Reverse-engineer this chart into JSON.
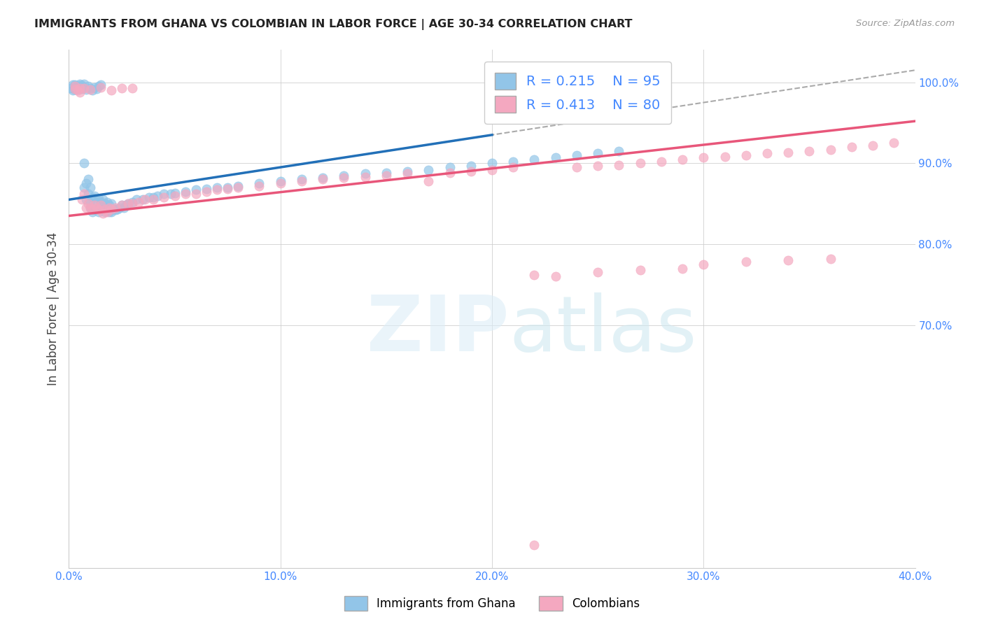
{
  "title": "IMMIGRANTS FROM GHANA VS COLOMBIAN IN LABOR FORCE | AGE 30-34 CORRELATION CHART",
  "source": "Source: ZipAtlas.com",
  "ylabel": "In Labor Force | Age 30-34",
  "xlim": [
    0.0,
    0.4
  ],
  "ylim": [
    0.4,
    1.04
  ],
  "xticks": [
    0.0,
    0.1,
    0.2,
    0.3,
    0.4
  ],
  "ytick_vals": [
    0.7,
    0.8,
    0.9,
    1.0
  ],
  "ytick_labels": [
    "70.0%",
    "80.0%",
    "90.0%",
    "100.0%"
  ],
  "ghana_R": 0.215,
  "ghana_N": 95,
  "colombian_R": 0.413,
  "colombian_N": 80,
  "ghana_color": "#92c5e8",
  "colombian_color": "#f4a8c0",
  "ghana_line_color": "#2270b8",
  "colombian_line_color": "#e8567a",
  "dashed_line_color": "#aaaaaa",
  "tick_color": "#4488ff",
  "ghana_x": [
    0.002,
    0.003,
    0.003,
    0.004,
    0.004,
    0.005,
    0.005,
    0.005,
    0.006,
    0.006,
    0.007,
    0.007,
    0.008,
    0.008,
    0.009,
    0.009,
    0.01,
    0.01,
    0.01,
    0.011,
    0.011,
    0.012,
    0.012,
    0.013,
    0.013,
    0.014,
    0.014,
    0.015,
    0.015,
    0.016,
    0.016,
    0.017,
    0.017,
    0.018,
    0.018,
    0.019,
    0.019,
    0.02,
    0.02,
    0.021,
    0.022,
    0.023,
    0.024,
    0.025,
    0.026,
    0.027,
    0.028,
    0.03,
    0.032,
    0.035,
    0.038,
    0.04,
    0.042,
    0.045,
    0.048,
    0.05,
    0.055,
    0.06,
    0.065,
    0.07,
    0.075,
    0.08,
    0.09,
    0.1,
    0.11,
    0.12,
    0.13,
    0.14,
    0.15,
    0.16,
    0.17,
    0.18,
    0.19,
    0.2,
    0.21,
    0.22,
    0.23,
    0.24,
    0.25,
    0.26,
    0.001,
    0.002,
    0.003,
    0.004,
    0.005,
    0.006,
    0.007,
    0.008,
    0.009,
    0.01,
    0.011,
    0.012,
    0.013,
    0.014,
    0.015
  ],
  "ghana_y": [
    0.99,
    0.993,
    0.997,
    0.992,
    0.995,
    0.993,
    0.996,
    0.998,
    0.992,
    0.995,
    0.87,
    0.9,
    0.855,
    0.875,
    0.862,
    0.88,
    0.845,
    0.852,
    0.87,
    0.84,
    0.858,
    0.842,
    0.86,
    0.843,
    0.852,
    0.84,
    0.856,
    0.842,
    0.852,
    0.843,
    0.855,
    0.84,
    0.85,
    0.842,
    0.852,
    0.84,
    0.848,
    0.84,
    0.85,
    0.843,
    0.842,
    0.843,
    0.845,
    0.848,
    0.845,
    0.848,
    0.85,
    0.852,
    0.855,
    0.855,
    0.858,
    0.858,
    0.86,
    0.862,
    0.862,
    0.863,
    0.865,
    0.867,
    0.868,
    0.87,
    0.87,
    0.872,
    0.875,
    0.878,
    0.88,
    0.882,
    0.885,
    0.887,
    0.888,
    0.89,
    0.892,
    0.895,
    0.897,
    0.9,
    0.902,
    0.905,
    0.907,
    0.91,
    0.912,
    0.915,
    0.993,
    0.997,
    0.991,
    0.994,
    0.992,
    0.996,
    0.998,
    0.991,
    0.995,
    0.993,
    0.99,
    0.994,
    0.992,
    0.995,
    0.997
  ],
  "colombian_x": [
    0.003,
    0.004,
    0.005,
    0.006,
    0.007,
    0.008,
    0.009,
    0.01,
    0.011,
    0.012,
    0.013,
    0.014,
    0.015,
    0.016,
    0.017,
    0.018,
    0.019,
    0.02,
    0.022,
    0.025,
    0.028,
    0.03,
    0.033,
    0.036,
    0.04,
    0.045,
    0.05,
    0.055,
    0.06,
    0.065,
    0.07,
    0.075,
    0.08,
    0.09,
    0.1,
    0.11,
    0.12,
    0.13,
    0.14,
    0.15,
    0.16,
    0.17,
    0.18,
    0.19,
    0.2,
    0.21,
    0.22,
    0.23,
    0.24,
    0.25,
    0.26,
    0.27,
    0.28,
    0.29,
    0.3,
    0.31,
    0.32,
    0.33,
    0.34,
    0.35,
    0.36,
    0.37,
    0.38,
    0.39,
    0.003,
    0.005,
    0.007,
    0.01,
    0.015,
    0.02,
    0.025,
    0.03,
    0.22,
    0.25,
    0.27,
    0.29,
    0.3,
    0.32,
    0.34,
    0.36
  ],
  "colombian_y": [
    0.995,
    0.99,
    0.993,
    0.855,
    0.862,
    0.845,
    0.85,
    0.845,
    0.843,
    0.848,
    0.845,
    0.842,
    0.848,
    0.838,
    0.843,
    0.84,
    0.845,
    0.843,
    0.845,
    0.848,
    0.85,
    0.85,
    0.852,
    0.855,
    0.855,
    0.858,
    0.86,
    0.862,
    0.862,
    0.865,
    0.867,
    0.868,
    0.87,
    0.872,
    0.875,
    0.878,
    0.88,
    0.882,
    0.883,
    0.885,
    0.887,
    0.878,
    0.888,
    0.89,
    0.892,
    0.895,
    0.428,
    0.76,
    0.895,
    0.897,
    0.898,
    0.9,
    0.902,
    0.905,
    0.907,
    0.908,
    0.91,
    0.912,
    0.913,
    0.915,
    0.917,
    0.92,
    0.922,
    0.925,
    0.992,
    0.988,
    0.993,
    0.991,
    0.994,
    0.99,
    0.993,
    0.993,
    0.762,
    0.765,
    0.768,
    0.77,
    0.775,
    0.778,
    0.78,
    0.782
  ]
}
